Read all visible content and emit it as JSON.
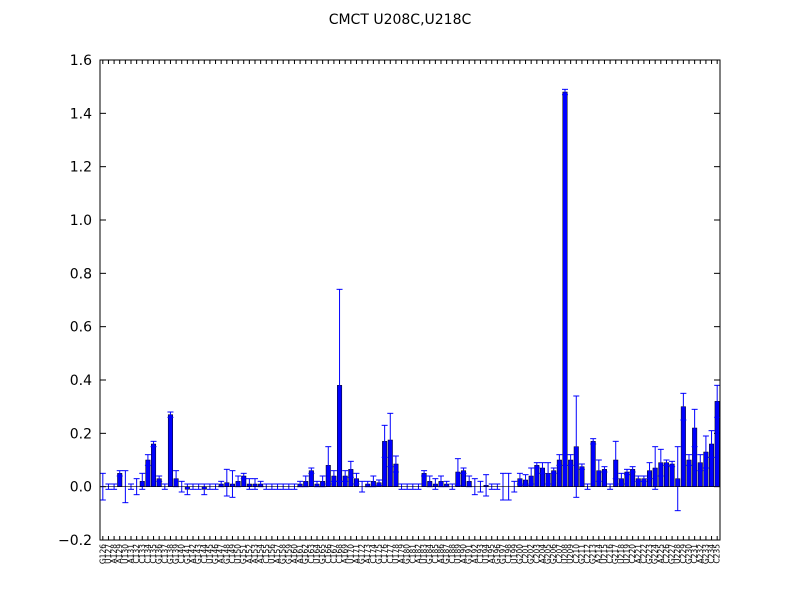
{
  "chart_data": {
    "type": "bar",
    "title": "CMCT  U208C,U218C",
    "categories": [
      "G126",
      "U127",
      "A128",
      "A129",
      "U130",
      "A131",
      "C132",
      "C133",
      "C134",
      "C135",
      "G136",
      "C137",
      "G138",
      "G139",
      "C140",
      "G141",
      "A142",
      "G143",
      "C144",
      "U145",
      "G146",
      "A147",
      "G148",
      "C149",
      "U150",
      "G151",
      "A152",
      "A153",
      "A154",
      "C155",
      "U156",
      "A157",
      "G158",
      "G159",
      "A160",
      "A161",
      "G162",
      "C163",
      "U164",
      "G165",
      "C166",
      "C167",
      "C168",
      "A169",
      "U170",
      "A171",
      "G172",
      "A173",
      "C174",
      "G175",
      "C176",
      "C177",
      "U178",
      "A179",
      "G180",
      "C181",
      "A182",
      "U183",
      "G184",
      "C185",
      "A186",
      "G187",
      "C188",
      "U189",
      "A190",
      "G191",
      "A192",
      "C193",
      "U194",
      "A195",
      "G196",
      "G197",
      "C198",
      "U199",
      "G200",
      "C201",
      "G202",
      "C203",
      "A204",
      "G205",
      "G206",
      "C207",
      "U208",
      "U209",
      "C210",
      "G211",
      "C212",
      "G213",
      "A214",
      "U215",
      "C216",
      "G217",
      "U218",
      "U219",
      "C220",
      "A221",
      "C222",
      "G223",
      "G224",
      "A225",
      "C226",
      "G227",
      "U228",
      "C229",
      "G230",
      "C231",
      "A232",
      "G233",
      "C234",
      "C235"
    ],
    "series": [
      {
        "name": "CMCT",
        "color": "#0000ff",
        "values": [
          0.0,
          0.0,
          0.0,
          0.05,
          0.0,
          0.0,
          0.0,
          0.02,
          0.1,
          0.16,
          0.03,
          0.0,
          0.27,
          0.03,
          0.0,
          -0.01,
          0.0,
          0.0,
          -0.01,
          0.0,
          0.0,
          0.01,
          0.015,
          0.01,
          0.02,
          0.04,
          0.01,
          0.01,
          0.01,
          0.0,
          0.0,
          0.0,
          0.0,
          0.0,
          0.0,
          0.01,
          0.02,
          0.06,
          0.01,
          0.02,
          0.08,
          0.04,
          0.38,
          0.04,
          0.065,
          0.03,
          0.0,
          0.01,
          0.02,
          0.015,
          0.17,
          0.175,
          0.085,
          0.0,
          0.0,
          0.0,
          0.0,
          0.05,
          0.02,
          0.01,
          0.02,
          0.01,
          0.0,
          0.055,
          0.06,
          0.02,
          0.0,
          0.0,
          0.005,
          0.0,
          0.0,
          0.0,
          0.0,
          0.0,
          0.03,
          0.025,
          0.04,
          0.08,
          0.07,
          0.05,
          0.06,
          0.1,
          1.48,
          0.1,
          0.15,
          0.075,
          0.0,
          0.17,
          0.06,
          0.065,
          0.0,
          0.1,
          0.03,
          0.055,
          0.065,
          0.03,
          0.03,
          0.06,
          0.07,
          0.09,
          0.09,
          0.085,
          0.03,
          0.3,
          0.1,
          0.22,
          0.09,
          0.13,
          0.16,
          0.32
        ],
        "errors": [
          0.05,
          0.01,
          0.01,
          0.01,
          0.06,
          0.01,
          0.03,
          0.03,
          0.02,
          0.01,
          0.01,
          0.01,
          0.01,
          0.03,
          0.02,
          0.02,
          0.01,
          0.01,
          0.02,
          0.01,
          0.01,
          0.01,
          0.05,
          0.05,
          0.02,
          0.01,
          0.02,
          0.02,
          0.01,
          0.01,
          0.01,
          0.01,
          0.01,
          0.01,
          0.01,
          0.01,
          0.02,
          0.01,
          0.01,
          0.02,
          0.07,
          0.02,
          0.36,
          0.02,
          0.03,
          0.02,
          0.02,
          0.01,
          0.02,
          0.01,
          0.06,
          0.1,
          0.03,
          0.01,
          0.01,
          0.01,
          0.01,
          0.01,
          0.02,
          0.02,
          0.02,
          0.01,
          0.01,
          0.05,
          0.01,
          0.02,
          0.03,
          0.02,
          0.04,
          0.01,
          0.01,
          0.05,
          0.05,
          0.02,
          0.02,
          0.02,
          0.03,
          0.01,
          0.02,
          0.04,
          0.01,
          0.02,
          0.01,
          0.02,
          0.19,
          0.01,
          0.01,
          0.01,
          0.04,
          0.01,
          0.01,
          0.07,
          0.02,
          0.01,
          0.01,
          0.01,
          0.01,
          0.03,
          0.08,
          0.05,
          0.01,
          0.01,
          0.12,
          0.05,
          0.02,
          0.07,
          0.03,
          0.06,
          0.05,
          0.06
        ]
      }
    ],
    "ylim": [
      -0.2,
      1.6
    ],
    "yticks": [
      {
        "value": -0.2,
        "label": "−0.2"
      },
      {
        "value": 0,
        "label": "0.0"
      },
      0.2,
      0.4,
      0.6,
      0.8,
      {
        "value": 1,
        "label": "1.0"
      },
      1.2,
      1.4,
      1.6
    ]
  }
}
